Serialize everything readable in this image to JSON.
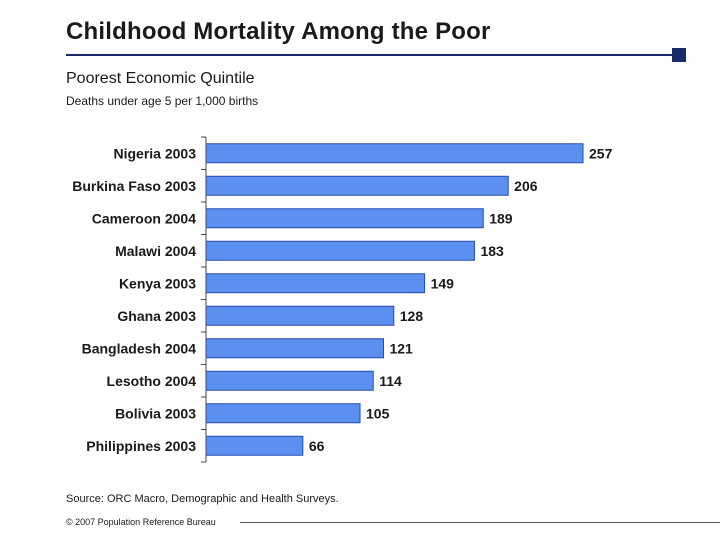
{
  "slide": {
    "title": "Childhood Mortality Among the Poor",
    "subtitle": "Poorest Economic Quintile",
    "unit_label": "Deaths under age 5 per 1,000 births",
    "source": "Source: ORC Macro, Demographic and Health Surveys.",
    "copyright": "© 2007 Population Reference Bureau",
    "accent_color": "#1a2b6d"
  },
  "chart_data": {
    "type": "bar",
    "orientation": "horizontal",
    "categories": [
      "Nigeria 2003",
      "Burkina Faso 2003",
      "Cameroon 2004",
      "Malawi 2004",
      "Kenya 2003",
      "Ghana 2003",
      "Bangladesh 2004",
      "Lesotho 2004",
      "Bolivia 2003",
      "Philippines 2003"
    ],
    "values": [
      257,
      206,
      189,
      183,
      149,
      128,
      121,
      114,
      105,
      66
    ],
    "xlim": [
      0,
      257
    ],
    "data_labels": true,
    "grid": false,
    "legend": "none",
    "bar_color": "#5b8ff0",
    "bar_edge_color": "#2a4aa8"
  }
}
